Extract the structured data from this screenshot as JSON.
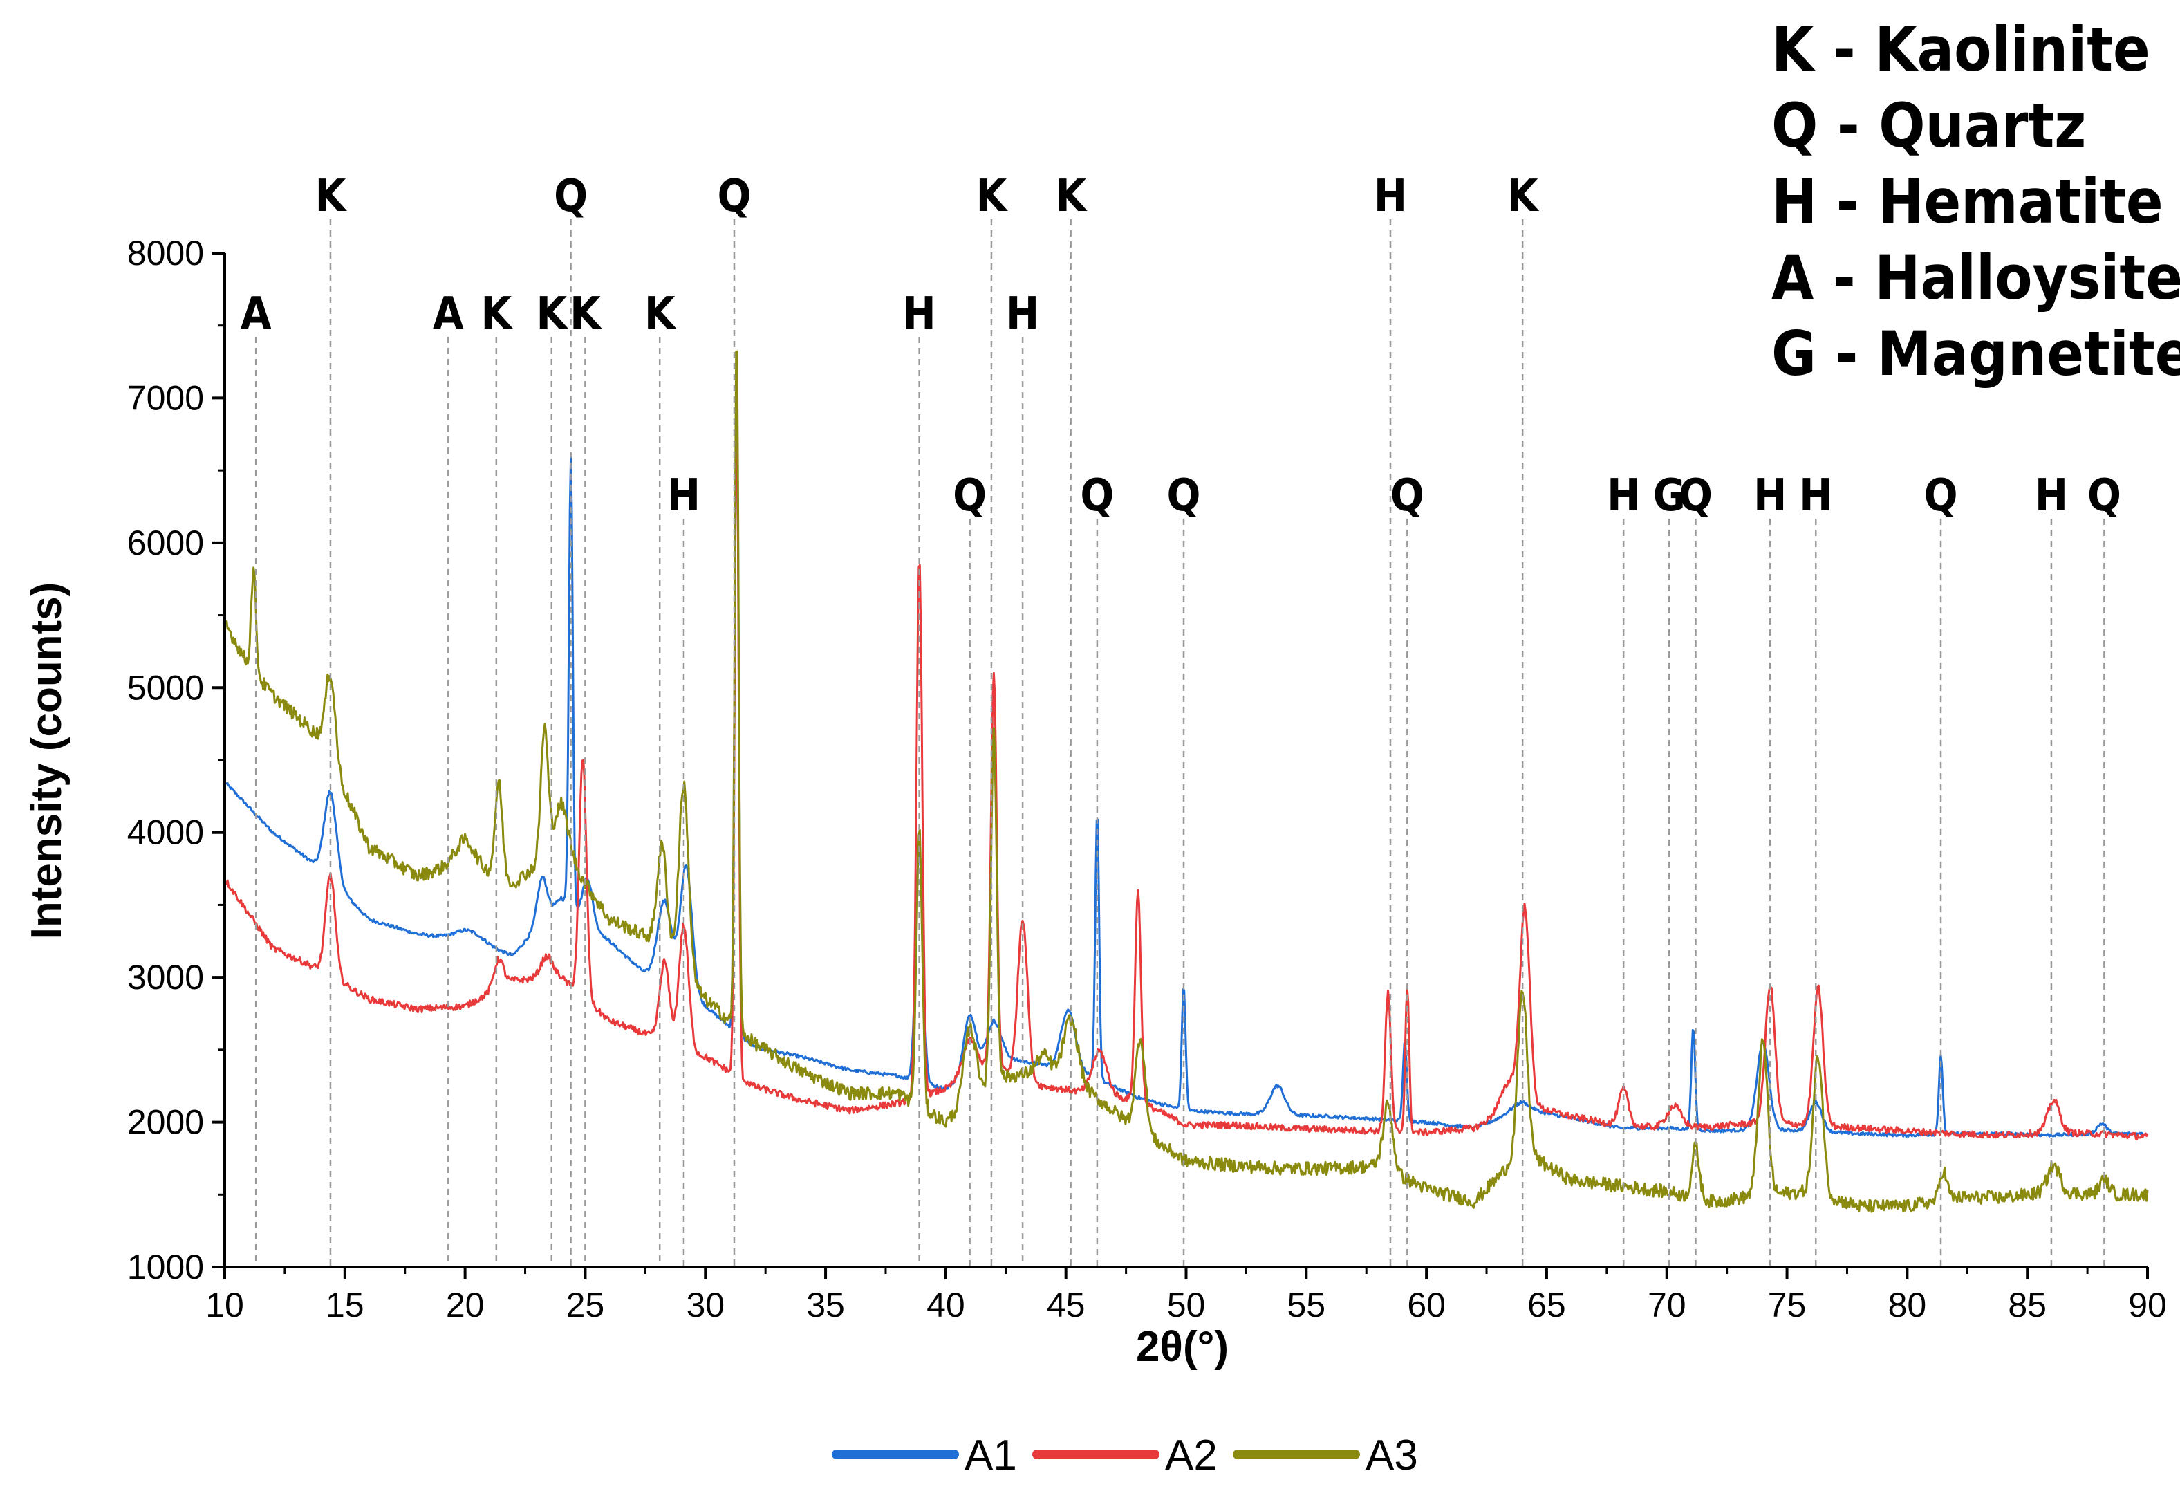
{
  "chart_data": {
    "type": "line",
    "xlabel": "2θ(°)",
    "ylabel": "Intensity (counts)",
    "xlim": [
      10,
      90
    ],
    "ylim": [
      1000,
      8000
    ],
    "xticks": [
      10,
      15,
      20,
      25,
      30,
      35,
      40,
      45,
      50,
      55,
      60,
      65,
      70,
      75,
      80,
      85,
      90
    ],
    "yticks": [
      1000,
      2000,
      3000,
      4000,
      5000,
      6000,
      7000,
      8000
    ],
    "legend_position": "bottom-center",
    "series": [
      {
        "name": "A1",
        "color": "#1f6fd6",
        "baseline": [
          [
            10,
            4350
          ],
          [
            12,
            4000
          ],
          [
            14,
            3750
          ],
          [
            16,
            3400
          ],
          [
            18,
            3300
          ],
          [
            20,
            3250
          ],
          [
            22,
            3150
          ],
          [
            24,
            3550
          ],
          [
            26,
            3250
          ],
          [
            28,
            2950
          ],
          [
            30,
            2800
          ],
          [
            32,
            2520
          ],
          [
            34,
            2450
          ],
          [
            36,
            2360
          ],
          [
            38,
            2320
          ],
          [
            40,
            2230
          ],
          [
            42,
            2450
          ],
          [
            44,
            2400
          ],
          [
            46,
            2320
          ],
          [
            48,
            2170
          ],
          [
            50,
            2080
          ],
          [
            52,
            2060
          ],
          [
            54,
            2050
          ],
          [
            56,
            2040
          ],
          [
            58,
            2020
          ],
          [
            60,
            2000
          ],
          [
            62,
            1960
          ],
          [
            64,
            2090
          ],
          [
            66,
            2030
          ],
          [
            68,
            1960
          ],
          [
            70,
            1960
          ],
          [
            72,
            1940
          ],
          [
            74,
            1950
          ],
          [
            76,
            1940
          ],
          [
            78,
            1920
          ],
          [
            80,
            1910
          ],
          [
            82,
            1920
          ],
          [
            84,
            1920
          ],
          [
            86,
            1910
          ],
          [
            88,
            1920
          ],
          [
            90,
            1920
          ]
        ],
        "peaks": [
          [
            14.4,
            600,
            0.25
          ],
          [
            20.2,
            80,
            0.6
          ],
          [
            23.2,
            300,
            0.2
          ],
          [
            24.4,
            3100,
            0.08
          ],
          [
            25.1,
            300,
            0.2
          ],
          [
            28.3,
            600,
            0.3
          ],
          [
            29.2,
            900,
            0.25
          ],
          [
            31.3,
            4550,
            0.08
          ],
          [
            38.9,
            1600,
            0.15
          ],
          [
            41.0,
            400,
            0.25
          ],
          [
            42.0,
            250,
            0.3
          ],
          [
            45.1,
            420,
            0.3
          ],
          [
            46.3,
            1850,
            0.08
          ],
          [
            49.9,
            850,
            0.08
          ],
          [
            53.8,
            200,
            0.3
          ],
          [
            59.1,
            550,
            0.08
          ],
          [
            63.9,
            50,
            0.4
          ],
          [
            71.1,
            700,
            0.08
          ],
          [
            74.0,
            600,
            0.25
          ],
          [
            76.2,
            200,
            0.25
          ],
          [
            81.4,
            550,
            0.08
          ],
          [
            88.1,
            70,
            0.2
          ]
        ]
      },
      {
        "name": "A2",
        "color": "#e83a3a",
        "baseline": [
          [
            10,
            3680
          ],
          [
            12,
            3200
          ],
          [
            14,
            3050
          ],
          [
            16,
            2850
          ],
          [
            18,
            2780
          ],
          [
            20,
            2800
          ],
          [
            22,
            2980
          ],
          [
            24,
            3000
          ],
          [
            26,
            2700
          ],
          [
            28,
            2580
          ],
          [
            30,
            2450
          ],
          [
            32,
            2250
          ],
          [
            34,
            2150
          ],
          [
            36,
            2080
          ],
          [
            38,
            2130
          ],
          [
            40,
            2230
          ],
          [
            42,
            2400
          ],
          [
            44,
            2250
          ],
          [
            46,
            2200
          ],
          [
            48,
            2150
          ],
          [
            50,
            1980
          ],
          [
            52,
            1980
          ],
          [
            54,
            1960
          ],
          [
            56,
            1950
          ],
          [
            58,
            1940
          ],
          [
            60,
            1930
          ],
          [
            62,
            1960
          ],
          [
            64,
            2130
          ],
          [
            66,
            2040
          ],
          [
            68,
            1980
          ],
          [
            70,
            1960
          ],
          [
            72,
            1970
          ],
          [
            74,
            2000
          ],
          [
            76,
            1980
          ],
          [
            78,
            1960
          ],
          [
            80,
            1940
          ],
          [
            82,
            1920
          ],
          [
            84,
            1910
          ],
          [
            86,
            1930
          ],
          [
            88,
            1920
          ],
          [
            90,
            1900
          ]
        ],
        "peaks": [
          [
            14.4,
            700,
            0.2
          ],
          [
            21.4,
            200,
            0.2
          ],
          [
            23.4,
            150,
            0.25
          ],
          [
            24.9,
            1650,
            0.15
          ],
          [
            28.3,
            550,
            0.2
          ],
          [
            29.1,
            850,
            0.2
          ],
          [
            31.3,
            4800,
            0.08
          ],
          [
            38.9,
            3700,
            0.12
          ],
          [
            41.0,
            250,
            0.3
          ],
          [
            42.0,
            2700,
            0.12
          ],
          [
            43.2,
            1100,
            0.2
          ],
          [
            46.4,
            300,
            0.3
          ],
          [
            48.0,
            1450,
            0.12
          ],
          [
            58.4,
            950,
            0.12
          ],
          [
            59.2,
            1000,
            0.08
          ],
          [
            63.5,
            200,
            0.4
          ],
          [
            64.1,
            1300,
            0.2
          ],
          [
            68.2,
            250,
            0.2
          ],
          [
            70.3,
            150,
            0.3
          ],
          [
            74.3,
            950,
            0.2
          ],
          [
            76.3,
            950,
            0.2
          ],
          [
            86.1,
            220,
            0.25
          ]
        ]
      },
      {
        "name": "A3",
        "color": "#8a8a0f",
        "baseline": [
          [
            10,
            5450
          ],
          [
            11,
            5150
          ],
          [
            12,
            4950
          ],
          [
            14,
            4650
          ],
          [
            16,
            3900
          ],
          [
            18,
            3700
          ],
          [
            20,
            3800
          ],
          [
            22,
            3650
          ],
          [
            24,
            3900
          ],
          [
            26,
            3400
          ],
          [
            28,
            3250
          ],
          [
            30,
            2850
          ],
          [
            32,
            2550
          ],
          [
            34,
            2350
          ],
          [
            36,
            2200
          ],
          [
            38,
            2200
          ],
          [
            40,
            2000
          ],
          [
            42,
            2300
          ],
          [
            44,
            2350
          ],
          [
            46,
            2200
          ],
          [
            48,
            1950
          ],
          [
            50,
            1730
          ],
          [
            52,
            1700
          ],
          [
            54,
            1680
          ],
          [
            56,
            1680
          ],
          [
            58,
            1700
          ],
          [
            60,
            1540
          ],
          [
            62,
            1450
          ],
          [
            64,
            1800
          ],
          [
            66,
            1600
          ],
          [
            68,
            1560
          ],
          [
            70,
            1520
          ],
          [
            72,
            1450
          ],
          [
            74,
            1500
          ],
          [
            76,
            1520
          ],
          [
            78,
            1420
          ],
          [
            80,
            1420
          ],
          [
            82,
            1480
          ],
          [
            84,
            1480
          ],
          [
            86,
            1520
          ],
          [
            88,
            1500
          ],
          [
            90,
            1500
          ]
        ],
        "peaks": [
          [
            11.2,
            700,
            0.1
          ],
          [
            14.4,
            600,
            0.2
          ],
          [
            20.0,
            150,
            0.4
          ],
          [
            21.4,
            650,
            0.15
          ],
          [
            23.3,
            900,
            0.15
          ],
          [
            24.0,
            300,
            0.3
          ],
          [
            28.2,
            700,
            0.2
          ],
          [
            29.1,
            1300,
            0.2
          ],
          [
            31.3,
            4800,
            0.08
          ],
          [
            38.9,
            1900,
            0.12
          ],
          [
            41.0,
            500,
            0.25
          ],
          [
            42.0,
            2400,
            0.12
          ],
          [
            44.1,
            120,
            0.3
          ],
          [
            45.2,
            450,
            0.3
          ],
          [
            48.1,
            650,
            0.2
          ],
          [
            58.4,
            450,
            0.2
          ],
          [
            64.0,
            1100,
            0.2
          ],
          [
            71.2,
            350,
            0.15
          ],
          [
            74.0,
            1050,
            0.2
          ],
          [
            76.3,
            950,
            0.2
          ],
          [
            81.5,
            200,
            0.15
          ],
          [
            86.1,
            180,
            0.25
          ],
          [
            88.2,
            100,
            0.2
          ]
        ]
      }
    ],
    "peak_labels": [
      {
        "label": "A",
        "x": 11.3,
        "tier": 2
      },
      {
        "label": "K",
        "x": 14.4,
        "tier": 1
      },
      {
        "label": "A",
        "x": 19.3,
        "tier": 2
      },
      {
        "label": "K",
        "x": 21.3,
        "tier": 2
      },
      {
        "label": "K",
        "x": 23.6,
        "tier": 2
      },
      {
        "label": "K",
        "x": 25.0,
        "tier": 2
      },
      {
        "label": "Q",
        "x": 24.4,
        "tier": 1
      },
      {
        "label": "K",
        "x": 28.1,
        "tier": 2
      },
      {
        "label": "H",
        "x": 29.1,
        "tier": 3
      },
      {
        "label": "Q",
        "x": 31.2,
        "tier": 1
      },
      {
        "label": "H",
        "x": 38.9,
        "tier": 2
      },
      {
        "label": "Q",
        "x": 41.0,
        "tier": 3
      },
      {
        "label": "K",
        "x": 41.9,
        "tier": 1
      },
      {
        "label": "H",
        "x": 43.2,
        "tier": 2
      },
      {
        "label": "K",
        "x": 45.2,
        "tier": 1
      },
      {
        "label": "Q",
        "x": 46.3,
        "tier": 3
      },
      {
        "label": "Q",
        "x": 49.9,
        "tier": 3
      },
      {
        "label": "H",
        "x": 58.5,
        "tier": 1
      },
      {
        "label": "Q",
        "x": 59.2,
        "tier": 3
      },
      {
        "label": "K",
        "x": 64.0,
        "tier": 1
      },
      {
        "label": "H",
        "x": 68.2,
        "tier": 3
      },
      {
        "label": "G",
        "x": 70.1,
        "tier": 3
      },
      {
        "label": "Q",
        "x": 71.2,
        "tier": 3
      },
      {
        "label": "H",
        "x": 74.3,
        "tier": 3
      },
      {
        "label": "H",
        "x": 76.2,
        "tier": 3
      },
      {
        "label": "Q",
        "x": 81.4,
        "tier": 3
      },
      {
        "label": "H",
        "x": 86.0,
        "tier": 3
      },
      {
        "label": "Q",
        "x": 88.2,
        "tier": 3
      }
    ],
    "phase_key": [
      "K - Kaolinite",
      "Q - Quartz",
      "H - Hematite",
      "A - Halloysite",
      "G - Magnetite"
    ]
  }
}
